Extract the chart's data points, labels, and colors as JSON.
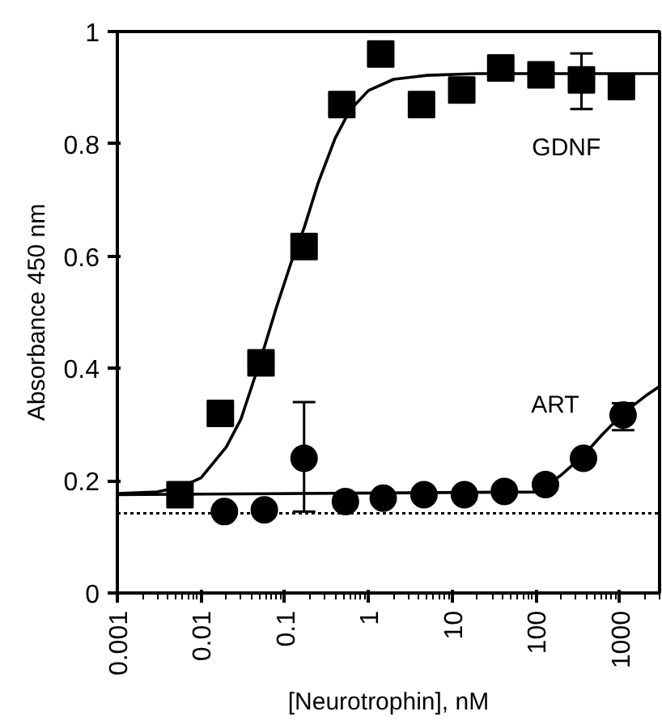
{
  "chart_data": {
    "type": "scatter",
    "xlabel": "[Neurotrophin], nM",
    "ylabel": "Absorbance 450 nm",
    "log": "x",
    "xlim": [
      0.001,
      3000
    ],
    "ylim": [
      0,
      1
    ],
    "xticks": [
      0.001,
      0.01,
      0.1,
      1,
      10,
      100,
      1000
    ],
    "yticks": [
      0,
      {
        "value": 0.2,
        "label": "0.2"
      },
      {
        "value": 0.4,
        "label": "0.4"
      },
      {
        "value": 0.6,
        "label": "0.6"
      },
      {
        "value": 0.8,
        "label": "0.8"
      },
      1
    ],
    "grid": false,
    "series": [
      {
        "name": "GDNF",
        "marker": "square",
        "color": "#000000",
        "x": [
          0.0056,
          0.017,
          0.052,
          0.17,
          0.48,
          1.4,
          4.3,
          13,
          38,
          115,
          350,
          1050
        ],
        "values": [
          0.175,
          0.32,
          0.41,
          0.617,
          0.87,
          0.96,
          0.87,
          0.896,
          0.935,
          0.923,
          0.914,
          0.902
        ],
        "errors": [
          null,
          null,
          null,
          null,
          null,
          null,
          null,
          null,
          null,
          null,
          [
            0.862,
            0.961
          ],
          null
        ]
      },
      {
        "name": "ART",
        "marker": "circle",
        "color": "#000000",
        "x": [
          0.019,
          0.057,
          0.17,
          0.53,
          1.5,
          4.6,
          14,
          42,
          130,
          370,
          1100
        ],
        "values": [
          0.145,
          0.148,
          0.24,
          0.163,
          0.169,
          0.175,
          0.175,
          0.181,
          0.193,
          0.24,
          0.317
        ],
        "errors": [
          null,
          null,
          [
            0.145,
            0.34
          ],
          null,
          null,
          null,
          null,
          null,
          null,
          null,
          [
            0.29,
            0.338
          ]
        ]
      },
      {
        "type": "line",
        "line_style": "solid",
        "color": "#000000",
        "x": [
          0.001,
          0.003,
          0.006,
          0.01,
          0.02,
          0.03,
          0.05,
          0.08,
          0.12,
          0.17,
          0.25,
          0.4,
          0.6,
          1,
          2,
          5,
          20,
          3000
        ],
        "values": [
          0.177,
          0.18,
          0.19,
          0.205,
          0.26,
          0.31,
          0.41,
          0.51,
          0.59,
          0.65,
          0.73,
          0.81,
          0.86,
          0.895,
          0.915,
          0.922,
          0.925,
          0.925
        ]
      },
      {
        "type": "line",
        "line_style": "solid",
        "color": "#000000",
        "x": [
          0.001,
          100,
          130,
          200,
          370,
          600,
          1100,
          2000,
          3000
        ],
        "values": [
          0.175,
          0.18,
          0.19,
          0.21,
          0.245,
          0.28,
          0.32,
          0.35,
          0.368
        ]
      }
    ],
    "ref_lines": [
      {
        "axis": "y",
        "value": 0.142,
        "color": "#000000",
        "line_style": "dotted"
      }
    ]
  }
}
